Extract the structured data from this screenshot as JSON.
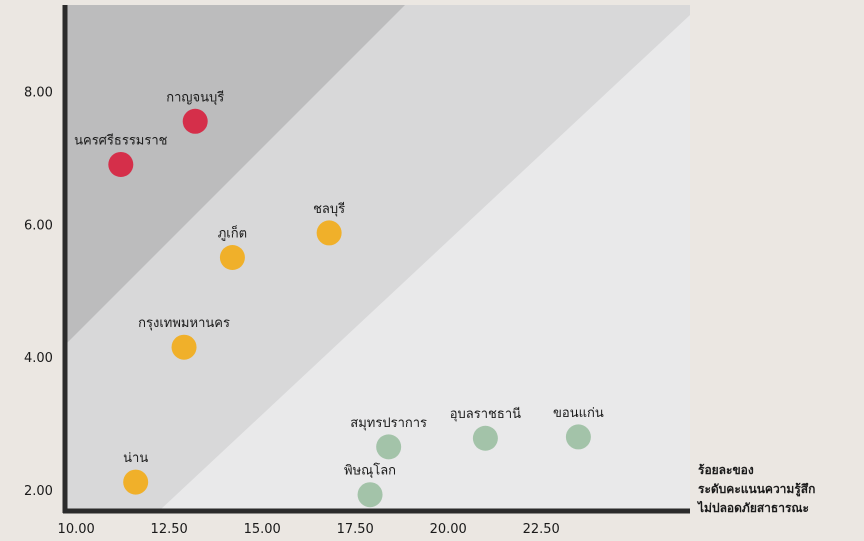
{
  "chart_data": {
    "type": "scatter",
    "title": "",
    "xlabel": "ร้อยละของ ระดับคะแนนความรู้สึก ไม่ปลอดภัยสาธารณะ",
    "xlabel_lines": [
      "ร้อยละของ",
      "ระดับคะแนนความรู้สึก",
      "ไม่ปลอดภัยสาธารณะ"
    ],
    "ylabel": "",
    "xlim": [
      9.7,
      26.5
    ],
    "ylim": [
      1.7,
      9.3
    ],
    "xticks": [
      10,
      12.5,
      15,
      17.5,
      20,
      22.5
    ],
    "xtick_labels": [
      "10.00",
      "12.50",
      "15.00",
      "17.50",
      "20.00",
      "22.50"
    ],
    "yticks": [
      2,
      4,
      6,
      8
    ],
    "ytick_labels": [
      "2.00",
      "4.00",
      "6.00",
      "8.00"
    ],
    "grid": false,
    "legend": "none",
    "zones": [
      {
        "name": "high",
        "color": "#bcbcbd"
      },
      {
        "name": "medium",
        "color": "#d8d8d9"
      },
      {
        "name": "low",
        "color": "#e9e9ea"
      }
    ],
    "points": [
      {
        "label": "กาญจนบุรี",
        "x": 13.2,
        "y": 7.55,
        "color": "#d52f4a"
      },
      {
        "label": "นครศรีธรรมราช",
        "x": 11.2,
        "y": 6.9,
        "color": "#d52f4a"
      },
      {
        "label": "ชลบุรี",
        "x": 16.8,
        "y": 5.87,
        "color": "#f0b02a"
      },
      {
        "label": "ภูเก็ต",
        "x": 14.2,
        "y": 5.5,
        "color": "#f0b02a"
      },
      {
        "label": "กรุงเทพมหานคร",
        "x": 12.9,
        "y": 4.15,
        "color": "#f0b02a"
      },
      {
        "label": "น่าน",
        "x": 11.6,
        "y": 2.12,
        "color": "#f0b02a"
      },
      {
        "label": "สมุทรปราการ",
        "x": 18.4,
        "y": 2.65,
        "color": "#a3c3a9"
      },
      {
        "label": "พิษณุโลก",
        "x": 17.9,
        "y": 1.93,
        "color": "#a3c3a9"
      },
      {
        "label": "อุบลราชธานี",
        "x": 21.0,
        "y": 2.78,
        "color": "#a3c3a9"
      },
      {
        "label": "ขอนแก่น",
        "x": 23.5,
        "y": 2.8,
        "color": "#a3c3a9"
      }
    ]
  }
}
